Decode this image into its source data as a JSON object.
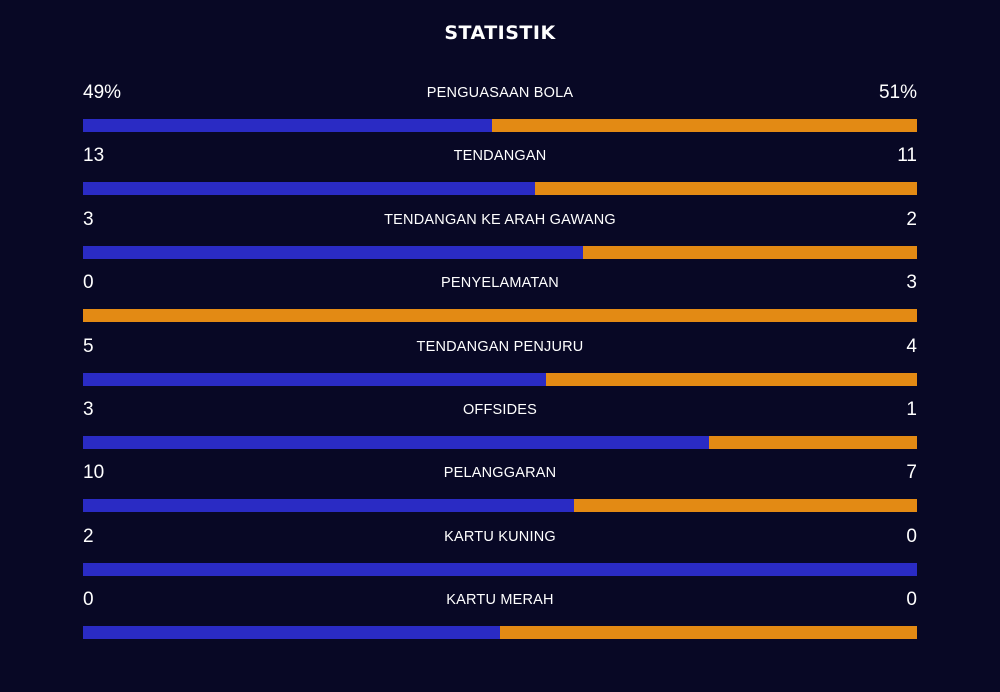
{
  "header": {
    "title": "STATISTIK"
  },
  "colors": {
    "background": "#080825",
    "home": "#2a2bc4",
    "away": "#e38a14"
  },
  "stats": [
    {
      "label": "PENGUASAAN BOLA",
      "home": "49%",
      "away": "51%",
      "home_value": 49,
      "away_value": 51
    },
    {
      "label": "TENDANGAN",
      "home": "13",
      "away": "11",
      "home_value": 13,
      "away_value": 11
    },
    {
      "label": "TENDANGAN KE ARAH GAWANG",
      "home": "3",
      "away": "2",
      "home_value": 3,
      "away_value": 2
    },
    {
      "label": "PENYELAMATAN",
      "home": "0",
      "away": "3",
      "home_value": 0,
      "away_value": 3
    },
    {
      "label": "TENDANGAN PENJURU",
      "home": "5",
      "away": "4",
      "home_value": 5,
      "away_value": 4
    },
    {
      "label": "OFFSIDES",
      "home": "3",
      "away": "1",
      "home_value": 3,
      "away_value": 1
    },
    {
      "label": "PELANGGARAN",
      "home": "10",
      "away": "7",
      "home_value": 10,
      "away_value": 7
    },
    {
      "label": "KARTU KUNING",
      "home": "2",
      "away": "0",
      "home_value": 2,
      "away_value": 0
    },
    {
      "label": "KARTU MERAH",
      "home": "0",
      "away": "0",
      "home_value": 0,
      "away_value": 0
    }
  ]
}
